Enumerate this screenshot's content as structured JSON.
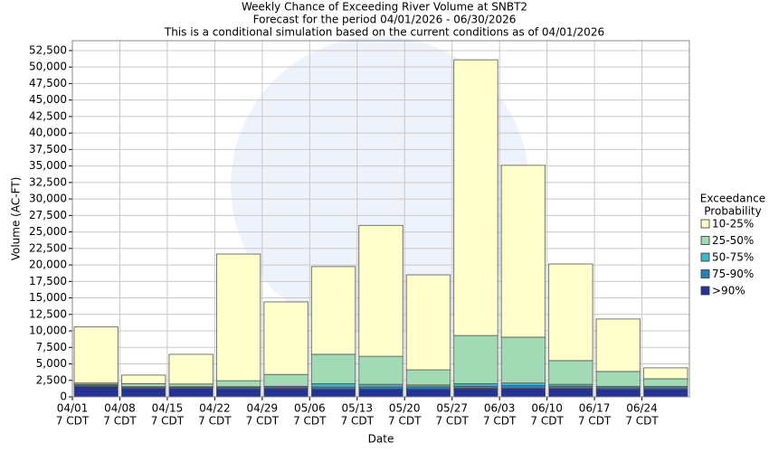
{
  "chart_data": {
    "type": "stacked_bar",
    "title": "Weekly Chance of Exceeding River Volume at SNBT2",
    "subtitle": "Forecast for the period 04/01/2026 - 06/30/2026",
    "subtitle2": "This is a conditional simulation based on the current conditions as of 04/01/2026",
    "x_label": "Date",
    "y_label": "Volume (AC-FT)",
    "legend_title": [
      "Exceedance",
      "Probability"
    ],
    "legend_position": "right",
    "grid": true,
    "categories": [
      [
        "04/01",
        "7 CDT"
      ],
      [
        "04/08",
        "7 CDT"
      ],
      [
        "04/15",
        "7 CDT"
      ],
      [
        "04/22",
        "7 CDT"
      ],
      [
        "04/29",
        "7 CDT"
      ],
      [
        "05/06",
        "7 CDT"
      ],
      [
        "05/13",
        "7 CDT"
      ],
      [
        "05/20",
        "7 CDT"
      ],
      [
        "05/27",
        "7 CDT"
      ],
      [
        "06/03",
        "7 CDT"
      ],
      [
        "06/10",
        "7 CDT"
      ],
      [
        "06/17",
        "7 CDT"
      ],
      [
        "06/24",
        "7 CDT"
      ]
    ],
    "series": [
      {
        "name": "10-25%",
        "color": "#ffffcc",
        "values": [
          8500,
          1300,
          4500,
          19200,
          11000,
          13300,
          19850,
          14400,
          41800,
          26050,
          14650,
          7950,
          1650
        ]
      },
      {
        "name": "25-50%",
        "color": "#a1dab4",
        "values": [
          200,
          450,
          400,
          900,
          1800,
          4450,
          4250,
          2300,
          7300,
          6950,
          3600,
          2250,
          1150
        ]
      },
      {
        "name": "50-75%",
        "color": "#41b6c4",
        "values": [
          100,
          100,
          100,
          100,
          100,
          500,
          400,
          300,
          400,
          400,
          300,
          200,
          200
        ]
      },
      {
        "name": "75-90%",
        "color": "#2c7fb8",
        "values": [
          200,
          150,
          150,
          200,
          200,
          300,
          300,
          300,
          300,
          400,
          300,
          200,
          200
        ]
      },
      {
        "name": ">90%",
        "color": "#253494",
        "values": [
          1600,
          1300,
          1300,
          1250,
          1300,
          1200,
          1200,
          1200,
          1300,
          1300,
          1300,
          1200,
          1200
        ]
      }
    ],
    "ylim": [
      0,
      54000
    ],
    "yticks": [
      0,
      {
        "value": 2500,
        "label": "2,500"
      },
      {
        "value": 5000,
        "label": "5,000"
      },
      {
        "value": 7500,
        "label": "7,500"
      },
      {
        "value": 10000,
        "label": "10,000"
      },
      {
        "value": 12500,
        "label": "12,500"
      },
      {
        "value": 15000,
        "label": "15,000"
      },
      {
        "value": 17500,
        "label": "17,500"
      },
      {
        "value": 20000,
        "label": "20,000"
      },
      {
        "value": 22500,
        "label": "22,500"
      },
      {
        "value": 25000,
        "label": "25,000"
      },
      {
        "value": 27500,
        "label": "27,500"
      },
      {
        "value": 30000,
        "label": "30,000"
      },
      {
        "value": 32500,
        "label": "32,500"
      },
      {
        "value": 35000,
        "label": "35,000"
      },
      {
        "value": 37500,
        "label": "37,500"
      },
      {
        "value": 40000,
        "label": "40,000"
      },
      {
        "value": 42500,
        "label": "42,500"
      },
      {
        "value": 45000,
        "label": "45,000"
      },
      {
        "value": 47500,
        "label": "47,500"
      },
      {
        "value": 50000,
        "label": "50,000"
      },
      {
        "value": 52500,
        "label": "52,500"
      }
    ]
  }
}
